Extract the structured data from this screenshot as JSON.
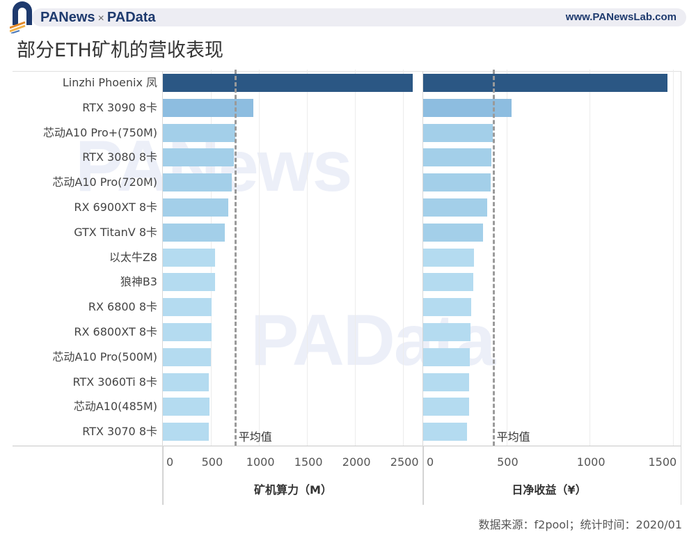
{
  "header": {
    "brand_left": "PANews",
    "brand_sep": "×",
    "brand_right": "PAData",
    "site": "www.PANewsLab.com"
  },
  "title": "部分ETH矿机的营收表现",
  "watermarks": [
    "PANews",
    "PAData"
  ],
  "footer": {
    "source": "数据来源：f2pool；统计时间：2020/01"
  },
  "colors": {
    "highlight": "#2b5784",
    "second": "#8dbde0",
    "mid": "#a3cfe9",
    "light": "#b4dbf0",
    "avg_line": "#9a9a9a"
  },
  "chart_data": [
    {
      "type": "bar",
      "orientation": "horizontal",
      "title": "",
      "xlabel": "矿机算力（M）",
      "ylabel": "",
      "xlim": [
        0,
        2650
      ],
      "xticks": [
        "0",
        "500",
        "1000",
        "1500",
        "2000",
        "2500"
      ],
      "grid": true,
      "categories": [
        "Linzhi Phoenix 凤",
        "RTX 3090 8卡",
        "芯动A10 Pro+(750M)",
        "RTX 3080 8卡",
        "芯动A10 Pro(720M)",
        "RX 6900XT 8卡",
        "GTX TitanV 8卡",
        "以太牛Z8",
        "狼神B3",
        "RX 6800 8卡",
        "RX 6800XT 8卡",
        "芯动A10 Pro(500M)",
        "RTX 3060Ti 8卡",
        "芯动A10(485M)",
        "RTX 3070 8卡"
      ],
      "values": [
        2600,
        940,
        750,
        740,
        720,
        680,
        645,
        545,
        540,
        510,
        510,
        500,
        480,
        485,
        480
      ],
      "reference_line": {
        "label": "平均值",
        "value": 745
      }
    },
    {
      "type": "bar",
      "orientation": "horizontal",
      "title": "",
      "xlabel": "日净收益（¥）",
      "ylabel": "",
      "xlim": [
        0,
        1550
      ],
      "xticks": [
        "0",
        "500",
        "1000",
        "1500"
      ],
      "grid": true,
      "categories": [
        "Linzhi Phoenix 凤",
        "RTX 3090 8卡",
        "芯动A10 Pro+(750M)",
        "RTX 3080 8卡",
        "芯动A10 Pro(720M)",
        "RX 6900XT 8卡",
        "GTX TitanV 8卡",
        "以太牛Z8",
        "狼神B3",
        "RX 6800 8卡",
        "RX 6800XT 8卡",
        "芯动A10 Pro(500M)",
        "RTX 3060Ti 8卡",
        "芯动A10(485M)",
        "RTX 3070 8卡"
      ],
      "values": [
        1470,
        530,
        418,
        412,
        404,
        383,
        358,
        304,
        300,
        287,
        284,
        280,
        275,
        275,
        262
      ],
      "reference_line": {
        "label": "平均值",
        "value": 417
      }
    }
  ]
}
